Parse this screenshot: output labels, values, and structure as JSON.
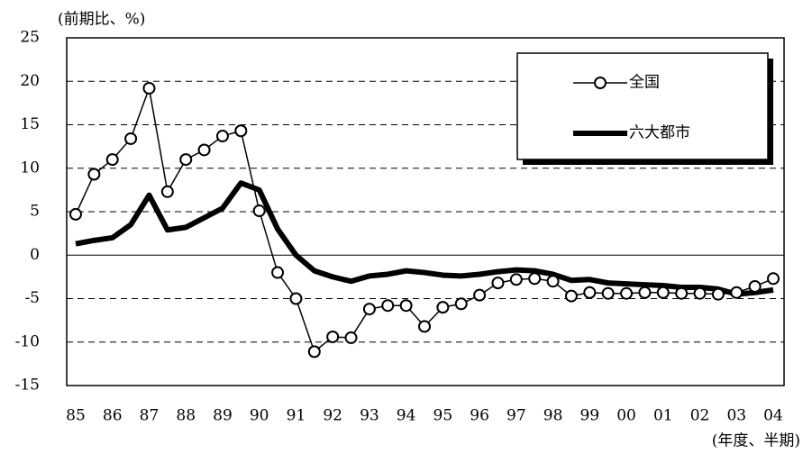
{
  "chart_data": {
    "type": "line",
    "y_label": "(前期比、%)",
    "x_label": "(年度、半期)",
    "categories": [
      "85",
      null,
      "86",
      null,
      "87",
      null,
      "88",
      null,
      "89",
      null,
      "90",
      null,
      "91",
      null,
      "92",
      null,
      "93",
      null,
      "94",
      null,
      "95",
      null,
      "96",
      null,
      "97",
      null,
      "98",
      null,
      "99",
      null,
      "00",
      null,
      "01",
      null,
      "02",
      null,
      "03",
      null,
      "04"
    ],
    "series": [
      {
        "name": "全国",
        "color": "#000000",
        "marker": "circle",
        "values": [
          4.7,
          9.3,
          11,
          13.4,
          19.2,
          7.3,
          11,
          12.1,
          13.7,
          14.3,
          5.1,
          -2,
          -5,
          -11.1,
          -9.4,
          -9.5,
          -6.2,
          -5.8,
          -5.8,
          -8.2,
          -6,
          -5.6,
          -4.6,
          -3.2,
          -2.8,
          -2.7,
          -3,
          -4.7,
          -4.3,
          -4.4,
          -4.4,
          -4.3,
          -4.3,
          -4.4,
          -4.4,
          -4.5,
          -4.3,
          -3.6,
          -2.7
        ]
      },
      {
        "name": "六大都市",
        "color": "#000000",
        "marker": "none",
        "values": [
          1.3,
          1.7,
          2,
          3.5,
          6.9,
          2.9,
          3.2,
          4.3,
          5.4,
          8.3,
          7.5,
          3,
          0,
          -1.8,
          -2.5,
          -3,
          -2.4,
          -2.2,
          -1.8,
          -2,
          -2.3,
          -2.4,
          -2.2,
          -1.9,
          -1.7,
          -1.8,
          -2.2,
          -2.9,
          -2.8,
          -3.2,
          -3.3,
          -3.4,
          -3.5,
          -3.7,
          -3.7,
          -3.9,
          -4.5,
          -4.3,
          -4
        ]
      }
    ],
    "ylim": [
      -15,
      25
    ],
    "yticks": [
      -15,
      -10,
      -5,
      0,
      5,
      10,
      15,
      20,
      25
    ],
    "grid": true,
    "legend": "upper right"
  }
}
